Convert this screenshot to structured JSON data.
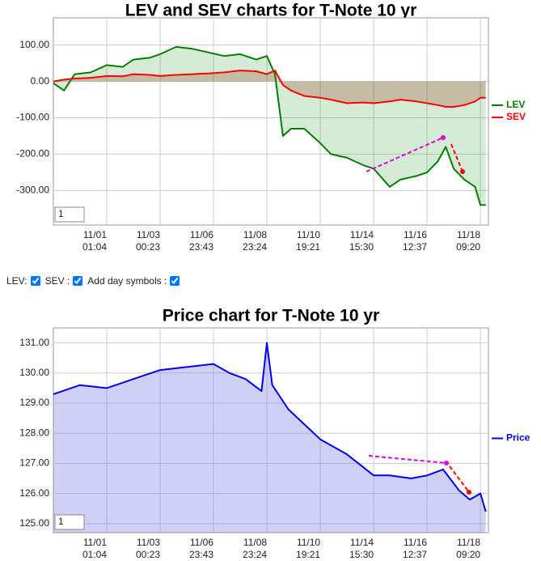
{
  "chart_data": [
    {
      "type": "line",
      "title": "LEV and SEV charts for T-Note 10 yr",
      "x": [
        0,
        0.2,
        0.4,
        0.7,
        1,
        1.3,
        1.5,
        1.8,
        2,
        2.3,
        2.6,
        2.9,
        3.2,
        3.5,
        3.8,
        4,
        4.15,
        4.3,
        4.45,
        4.7,
        5,
        5.2,
        5.5,
        5.8,
        6,
        6.3,
        6.5,
        6.8,
        7,
        7.2,
        7.35,
        7.5,
        7.7,
        7.9,
        8,
        8.1
      ],
      "series": [
        {
          "name": "LEV",
          "color": "#008000",
          "fill": "rgba(0,128,0,0.16)",
          "values": [
            -5,
            -25,
            20,
            25,
            45,
            40,
            60,
            65,
            75,
            95,
            90,
            80,
            70,
            75,
            60,
            70,
            20,
            -150,
            -130,
            -130,
            -170,
            -200,
            -210,
            -230,
            -240,
            -290,
            -270,
            -260,
            -250,
            -220,
            -180,
            -240,
            -270,
            -290,
            -340,
            -340
          ]
        },
        {
          "name": "SEV",
          "color": "#ff0000",
          "fill": "rgba(160,82,45,0.3)",
          "values": [
            0,
            5,
            8,
            10,
            15,
            14,
            20,
            18,
            15,
            18,
            20,
            22,
            25,
            30,
            28,
            20,
            30,
            -10,
            -25,
            -40,
            -45,
            -50,
            -60,
            -58,
            -60,
            -55,
            -50,
            -55,
            -60,
            -65,
            -70,
            -70,
            -65,
            -55,
            -45,
            -45
          ]
        }
      ],
      "xlim": [
        0,
        8.15
      ],
      "xticks": [
        {
          "value": 1,
          "label": "11/01 01:04"
        },
        {
          "value": 2,
          "label": "11/03 00:23"
        },
        {
          "value": 3,
          "label": "11/06 23:43"
        },
        {
          "value": 4,
          "label": "11/08 23:24"
        },
        {
          "value": 5,
          "label": "11/10 19:21"
        },
        {
          "value": 6,
          "label": "11/14 15:30"
        },
        {
          "value": 7,
          "label": "11/16 12:37"
        },
        {
          "value": 8,
          "label": "11/18 09:20"
        }
      ],
      "ylim": [
        -395,
        175
      ],
      "yticks": [
        {
          "value": -300,
          "label": "-300.00"
        },
        {
          "value": -200,
          "label": "-200.00"
        },
        {
          "value": -100,
          "label": "-100.00"
        },
        {
          "value": 0,
          "label": "0.00"
        },
        {
          "value": 100,
          "label": "100.00"
        }
      ],
      "grid": true,
      "legend": "right",
      "zoom_input": "1"
    },
    {
      "type": "area",
      "title": "Price chart for T-Note 10 yr",
      "x": [
        0,
        0.5,
        1,
        1.5,
        2,
        2.5,
        3,
        3.3,
        3.6,
        3.9,
        4,
        4.1,
        4.4,
        4.7,
        5,
        5.5,
        6,
        6.3,
        6.7,
        7,
        7.3,
        7.6,
        7.8,
        8,
        8.1
      ],
      "series": [
        {
          "name": "Price",
          "color": "#0000ee",
          "fill": "rgba(120,120,230,0.35)",
          "values": [
            129.3,
            129.6,
            129.5,
            129.8,
            130.1,
            130.2,
            130.3,
            130,
            129.8,
            129.4,
            131,
            129.6,
            128.8,
            128.3,
            127.8,
            127.3,
            126.6,
            126.6,
            126.5,
            126.6,
            126.8,
            126.1,
            125.8,
            126,
            125.4
          ]
        }
      ],
      "xlim": [
        0,
        8.15
      ],
      "xticks": [
        {
          "value": 1,
          "label": "11/01 01:04"
        },
        {
          "value": 2,
          "label": "11/03 00:23"
        },
        {
          "value": 3,
          "label": "11/06 23:43"
        },
        {
          "value": 4,
          "label": "11/08 23:24"
        },
        {
          "value": 5,
          "label": "11/10 19:21"
        },
        {
          "value": 6,
          "label": "11/14 15:30"
        },
        {
          "value": 7,
          "label": "11/16 12:37"
        },
        {
          "value": 8,
          "label": "11/18 09:20"
        }
      ],
      "ylim": [
        124.7,
        131.5
      ],
      "yticks": [
        {
          "value": 125,
          "label": "125.00"
        },
        {
          "value": 126,
          "label": "126.00"
        },
        {
          "value": 127,
          "label": "127.00"
        },
        {
          "value": 128,
          "label": "128.00"
        },
        {
          "value": 129,
          "label": "129.00"
        },
        {
          "value": 130,
          "label": "130.00"
        },
        {
          "value": 131,
          "label": "131.00"
        }
      ],
      "grid": true,
      "legend": "right",
      "zoom_input": "1"
    }
  ],
  "controls": {
    "lev": "LEV:",
    "sev": "SEV :",
    "day_symbols": "Add day symbols :"
  }
}
